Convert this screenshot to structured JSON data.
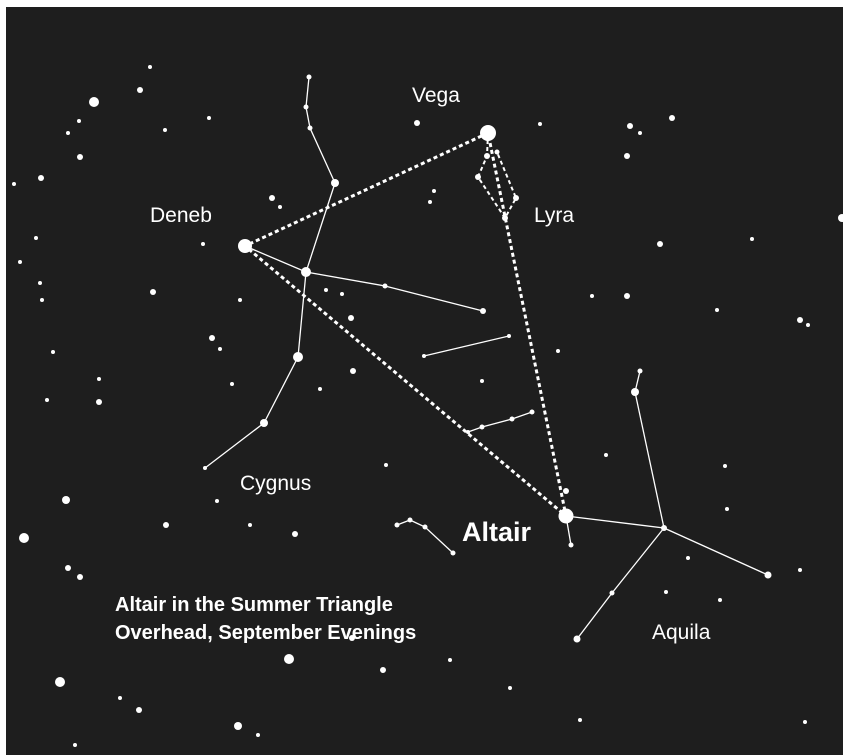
{
  "labels": {
    "vega": "Vega",
    "deneb": "Deneb",
    "lyra": "Lyra",
    "cygnus": "Cygnus",
    "altair": "Altair",
    "aquila": "Aquila"
  },
  "caption": [
    "Altair in the Summer Triangle",
    "Overhead, September Evenings"
  ]
}
